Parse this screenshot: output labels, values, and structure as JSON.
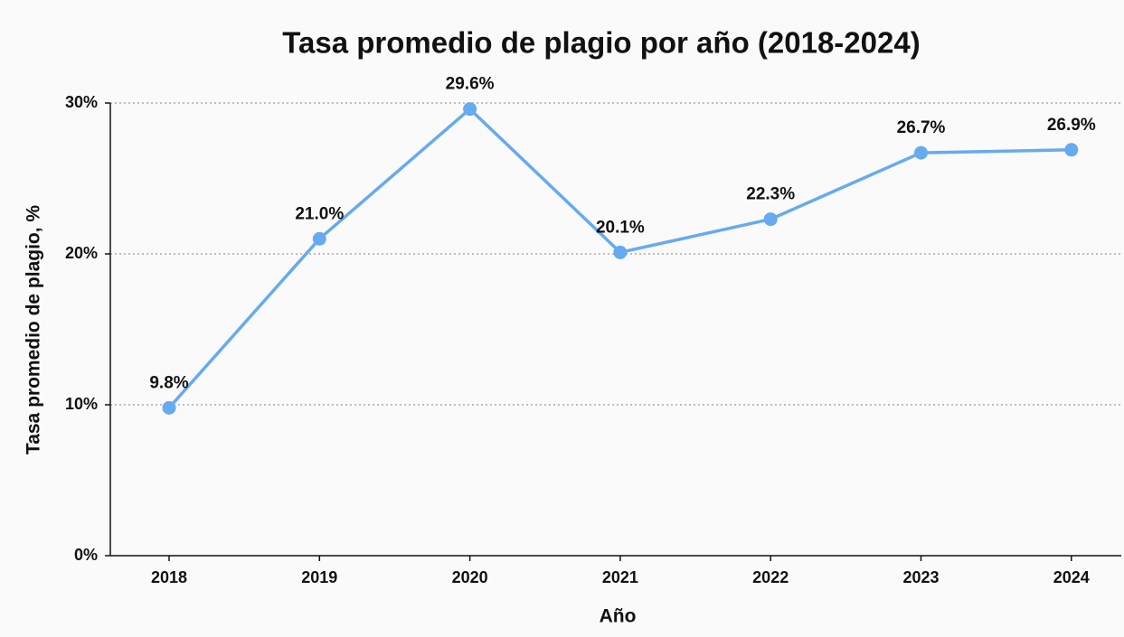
{
  "chart_data": {
    "type": "line",
    "title": "Tasa promedio de plagio por año (2018-2024)",
    "x_label": "Año",
    "y_label": "Tasa promedio de plagio, %",
    "categories": [
      "2018",
      "2019",
      "2020",
      "2021",
      "2022",
      "2023",
      "2024"
    ],
    "series": [
      {
        "name": "Tasa promedio de plagio",
        "color": "#66aaf0",
        "values": [
          9.8,
          21.0,
          29.6,
          20.1,
          22.3,
          26.7,
          26.9
        ],
        "value_labels": [
          "9.8%",
          "21.0%",
          "29.6%",
          "20.1%",
          "22.3%",
          "26.7%",
          "26.9%"
        ]
      }
    ],
    "ylim": [
      0,
      30
    ],
    "yticks": [
      {
        "value": 0,
        "label": "0%"
      },
      {
        "value": 10,
        "label": "10%"
      },
      {
        "value": 20,
        "label": "20%"
      },
      {
        "value": 30,
        "label": "30%"
      }
    ],
    "grid": true
  }
}
